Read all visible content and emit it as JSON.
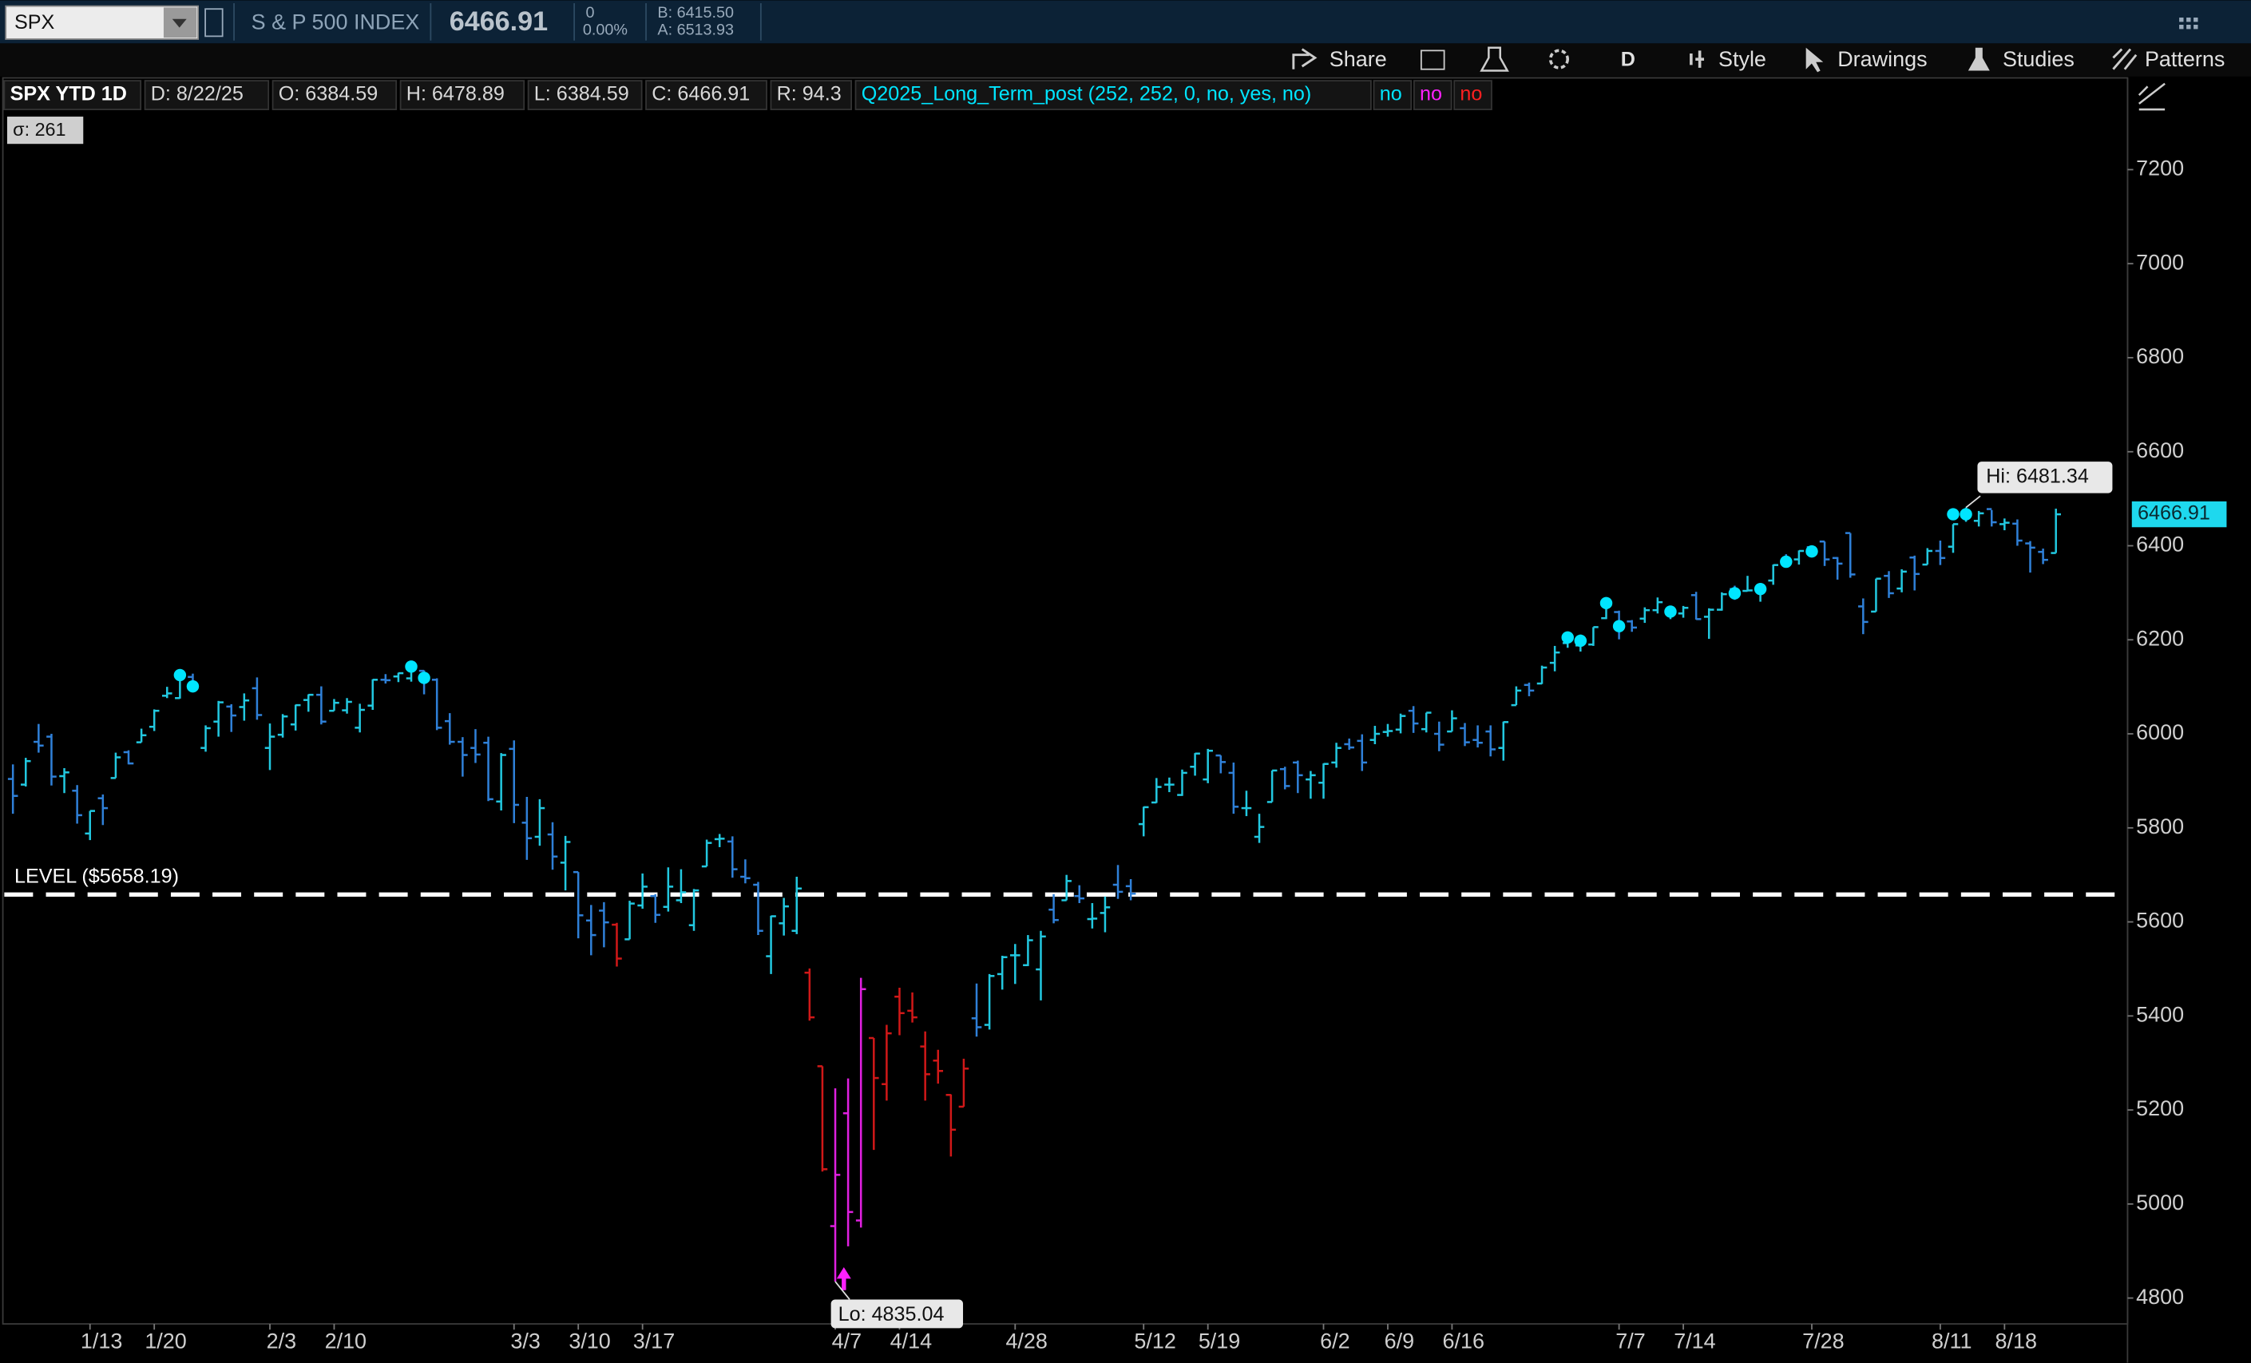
{
  "toolbar": {
    "symbol": "SPX",
    "description": "S & P 500 INDEX",
    "last": "6466.91",
    "change": "0",
    "change_pct": "0.00%",
    "bid": "B: 6415.50",
    "ask": "A: 6513.93",
    "aggregation": "D",
    "buttons": [
      "Share",
      "Style",
      "Drawings",
      "Studies",
      "Patterns"
    ]
  },
  "chart_data": {
    "type": "ohlc",
    "title": "SPX YTD 1D",
    "header": [
      "D: 8/22/25",
      "O: 6384.59",
      "H: 6478.89",
      "L: 6384.59",
      "C: 6466.91",
      "R: 94.3"
    ],
    "study": "Q2025_Long_Term_post (252, 252, 0, no, yes, no)",
    "study_flags": [
      {
        "text": "no",
        "color": "#00e5ff"
      },
      {
        "text": "no",
        "color": "#ff20ff"
      },
      {
        "text": "no",
        "color": "#ff2020"
      }
    ],
    "sigma": "σ: 261",
    "up_color": "#22c8e0",
    "down_color": "#2f80d8",
    "color_ranges": [
      {
        "from": 47,
        "to": 47,
        "color": "#d01818"
      },
      {
        "from": 62,
        "to": 74,
        "color": "#d01818"
      },
      {
        "from": 64,
        "to": 66,
        "color": "#e020e0"
      }
    ],
    "open": [
      5904,
      5892,
      5983,
      5994,
      5910,
      5879,
      5788,
      5863,
      5906,
      5961,
      5982,
      6015,
      6081,
      6076,
      6121,
      5970,
      6026,
      6058,
      6057,
      6097,
      5970,
      5998,
      6020,
      6072,
      6083,
      6049,
      6050,
      6013,
      6060,
      6115,
      6122,
      6118,
      6134,
      6115,
      6027,
      5983,
      5970,
      5981,
      5856,
      5968,
      5811,
      5781,
      5786,
      5726,
      5706,
      5603,
      5624,
      5594,
      5563,
      5635,
      5655,
      5632,
      5646,
      5593,
      5718,
      5776,
      5771,
      5696,
      5679,
      5527,
      5597,
      5581,
      5492,
      5293,
      4953,
      5193,
      4965,
      5353,
      5255,
      5441,
      5411,
      5335,
      5305,
      5232,
      5207,
      5395,
      5381,
      5489,
      5529,
      5508,
      5499,
      5626,
      5646,
      5655,
      5606,
      5619,
      5679,
      5676,
      5808,
      5854,
      5892,
      5870,
      5930,
      5903,
      5954,
      5917,
      5842,
      5781,
      5855,
      5925,
      5939,
      5903,
      5896,
      5939,
      5978,
      5985,
      5987,
      6004,
      6009,
      6049,
      6010,
      6000,
      6005,
      6012,
      5987,
      6005,
      5970,
      6061,
      6104,
      6107,
      6151,
      6193,
      6188,
      6190,
      6246,
      6259,
      6239,
      6245,
      6263,
      6256,
      6256,
      6295,
      6249,
      6264,
      6308,
      6304,
      6306,
      6326,
      6369,
      6371,
      6397,
      6409,
      6374,
      6427,
      6271,
      6260,
      6336,
      6309,
      6375,
      6360,
      6389,
      6398,
      6461,
      6453,
      6478,
      6446,
      6447,
      6405,
      6387,
      6384.59
    ],
    "high": [
      5935,
      5949,
      6021,
      6000,
      5927,
      5891,
      5836,
      5871,
      5960,
      5965,
      6011,
      6052,
      6100,
      6119,
      6128,
      6018,
      6070,
      6063,
      6086,
      6120,
      6022,
      6042,
      6062,
      6084,
      6101,
      6074,
      6076,
      6064,
      6116,
      6127,
      6130,
      6147,
      6135,
      6118,
      6044,
      5993,
      6010,
      5994,
      5959,
      5986,
      5866,
      5861,
      5812,
      5783,
      5706,
      5636,
      5642,
      5598,
      5645,
      5703,
      5659,
      5716,
      5712,
      5670,
      5775,
      5787,
      5782,
      5733,
      5685,
      5613,
      5651,
      5696,
      5501,
      5293,
      5246,
      5267,
      5481,
      5353,
      5381,
      5460,
      5450,
      5367,
      5328,
      5233,
      5309,
      5469,
      5489,
      5528,
      5553,
      5572,
      5581,
      5659,
      5700,
      5678,
      5640,
      5654,
      5721,
      5691,
      5845,
      5906,
      5907,
      5924,
      5959,
      5968,
      5954,
      5939,
      5879,
      5830,
      5922,
      5930,
      5943,
      5921,
      5937,
      5981,
      5990,
      5999,
      6017,
      6021,
      6043,
      6059,
      6045,
      6026,
      6050,
      6023,
      6018,
      6018,
      6026,
      6101,
      6109,
      6145,
      6187,
      6215,
      6211,
      6227,
      6284,
      6262,
      6242,
      6269,
      6290,
      6266,
      6272,
      6302,
      6267,
      6301,
      6315,
      6336,
      6316,
      6360,
      6382,
      6390,
      6401,
      6409,
      6376,
      6427,
      6288,
      6330,
      6346,
      6350,
      6379,
      6395,
      6411,
      6446,
      6481.34,
      6474,
      6476,
      6458,
      6456,
      6410,
      6394,
      6478.89
    ],
    "low": [
      5830,
      5888,
      5960,
      5890,
      5874,
      5809,
      5774,
      5806,
      5906,
      5935,
      5982,
      6006,
      6076,
      6075,
      6088,
      5962,
      5994,
      6004,
      6028,
      6030,
      5923,
      5992,
      6007,
      6047,
      6020,
      6049,
      6043,
      6003,
      6051,
      6107,
      6110,
      6111,
      6084,
      6008,
      5977,
      5909,
      5938,
      5857,
      5837,
      5810,
      5732,
      5762,
      5711,
      5667,
      5565,
      5529,
      5546,
      5505,
      5563,
      5628,
      5598,
      5622,
      5640,
      5581,
      5718,
      5759,
      5694,
      5682,
      5572,
      5489,
      5571,
      5574,
      5390,
      5069,
      4835.04,
      4910,
      4950,
      5115,
      5220,
      5359,
      5386,
      5220,
      5256,
      5101,
      5207,
      5356,
      5371,
      5456,
      5468,
      5506,
      5433,
      5597,
      5646,
      5640,
      5586,
      5578,
      5649,
      5646,
      5782,
      5853,
      5876,
      5868,
      5911,
      5895,
      5916,
      5830,
      5825,
      5768,
      5855,
      5882,
      5874,
      5862,
      5862,
      5928,
      5966,
      5921,
      5978,
      5994,
      6001,
      6002,
      6003,
      5963,
      6005,
      5974,
      5971,
      5952,
      5943,
      6061,
      6080,
      6106,
      6133,
      6183,
      6175,
      6187,
      6244,
      6201,
      6217,
      6236,
      6256,
      6244,
      6247,
      6243,
      6202,
      6262,
      6285,
      6303,
      6281,
      6317,
      6360,
      6360,
      6375,
      6357,
      6328,
      6332,
      6212,
      6260,
      6289,
      6301,
      6305,
      6360,
      6359,
      6385,
      6451,
      6441,
      6441,
      6433,
      6400,
      6343,
      6361,
      6384.59
    ],
    "close": [
      5868,
      5942,
      5975,
      5909,
      5918,
      5827,
      5836,
      5842,
      5950,
      5937,
      5997,
      6049,
      6086,
      6119,
      6101,
      6012,
      6067,
      6039,
      6071,
      6040,
      5994,
      6037,
      6061,
      6083,
      6026,
      6066,
      6068,
      6051,
      6115,
      6114,
      6129,
      6144,
      6117,
      6013,
      5983,
      5955,
      5956,
      5861,
      5955,
      5849,
      5778,
      5842,
      5739,
      5770,
      5614,
      5572,
      5599,
      5522,
      5639,
      5675,
      5615,
      5675,
      5663,
      5667,
      5768,
      5777,
      5712,
      5693,
      5581,
      5612,
      5633,
      5671,
      5397,
      5074,
      5062,
      4983,
      5457,
      5268,
      5363,
      5406,
      5397,
      5276,
      5283,
      5158,
      5288,
      5376,
      5485,
      5525,
      5529,
      5561,
      5569,
      5604,
      5687,
      5650,
      5607,
      5631,
      5664,
      5660,
      5844,
      5887,
      5892,
      5917,
      5958,
      5964,
      5940,
      5845,
      5842,
      5802,
      5922,
      5889,
      5912,
      5912,
      5936,
      5970,
      5971,
      5939,
      6000,
      6006,
      6038,
      6022,
      6045,
      5977,
      6033,
      5982,
      5981,
      5967,
      6025,
      6092,
      6092,
      6141,
      6173,
      6205,
      6198,
      6227,
      6279,
      6230,
      6226,
      6263,
      6280,
      6260,
      6268,
      6244,
      6264,
      6297,
      6297,
      6305,
      6309,
      6359,
      6363,
      6389,
      6390,
      6371,
      6362,
      6339,
      6238,
      6330,
      6299,
      6345,
      6340,
      6389,
      6374,
      6446,
      6466,
      6469,
      6450,
      6449,
      6411,
      6396,
      6370,
      6466.91
    ],
    "signals": {
      "color": "#00e5ff",
      "index": [
        13,
        14,
        31,
        32,
        121,
        122,
        124,
        125,
        129,
        134,
        136,
        138,
        140,
        151,
        152
      ],
      "values": [
        6125,
        6101,
        6143,
        6119,
        6205,
        6198,
        6278,
        6229,
        6260,
        6299,
        6308,
        6366,
        6388,
        6467,
        6467
      ]
    },
    "xlim": [
      -0.67,
      164.35
    ],
    "ylim": [
      4745,
      7328
    ],
    "yticks": [
      4800,
      5000,
      5200,
      5400,
      5600,
      5800,
      6000,
      6200,
      6400,
      6600,
      6800,
      7000,
      7200
    ],
    "xticks": [
      {
        "value": 6,
        "label": "1/13"
      },
      {
        "value": 11,
        "label": "1/20"
      },
      {
        "value": 20,
        "label": "2/3"
      },
      {
        "value": 25,
        "label": "2/10"
      },
      {
        "value": 39,
        "label": "3/3"
      },
      {
        "value": 44,
        "label": "3/10"
      },
      {
        "value": 49,
        "label": "3/17"
      },
      {
        "value": 64,
        "label": "4/7"
      },
      {
        "value": 69,
        "label": "4/14"
      },
      {
        "value": 78,
        "label": "4/28"
      },
      {
        "value": 88,
        "label": "5/12"
      },
      {
        "value": 93,
        "label": "5/19"
      },
      {
        "value": 102,
        "label": "6/2"
      },
      {
        "value": 107,
        "label": "6/9"
      },
      {
        "value": 112,
        "label": "6/16"
      },
      {
        "value": 125,
        "label": "7/7"
      },
      {
        "value": 130,
        "label": "7/14"
      },
      {
        "value": 140,
        "label": "7/28"
      },
      {
        "value": 150,
        "label": "8/11"
      },
      {
        "value": 155,
        "label": "8/18"
      }
    ],
    "level": {
      "value": 5658.19,
      "label": "LEVEL ($5658.19)",
      "color": "#ffffff"
    },
    "hi": {
      "value": 6481.34,
      "label": "Hi: 6481.34",
      "index": 152
    },
    "lo": {
      "value": 4835.04,
      "label": "Lo: 4835.04",
      "index": 64
    },
    "last_price": 6466.91,
    "last_price_color": "#1ed8ee"
  }
}
